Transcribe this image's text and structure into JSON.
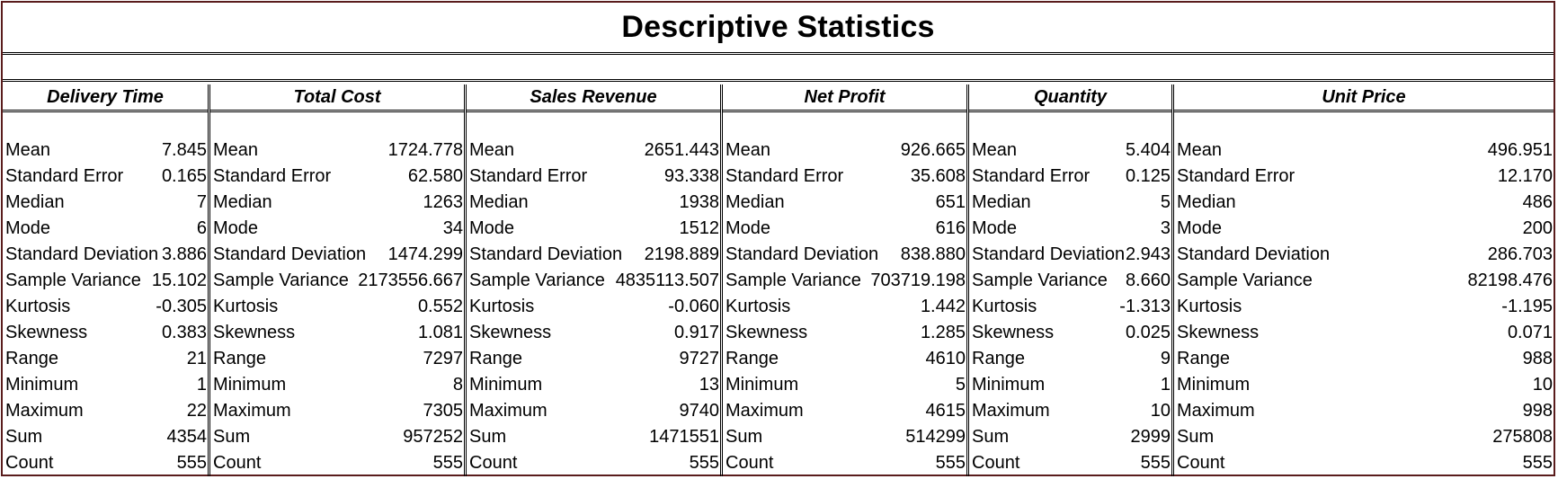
{
  "title": "Descriptive Statistics",
  "stat_labels": [
    "Mean",
    "Standard Error",
    "Median",
    "Mode",
    "Standard Deviation",
    "Sample Variance",
    "Kurtosis",
    "Skewness",
    "Range",
    "Minimum",
    "Maximum",
    "Sum",
    "Count"
  ],
  "columns": [
    {
      "header": "Delivery Time",
      "labels": [
        "Mean",
        "Standard Error",
        "Median",
        "Mode",
        "Standard Deviation",
        "Sample Variance",
        "Kurtosis",
        "Skewness",
        "Range",
        "Minimum",
        "Maximum",
        "Sum",
        "Count"
      ],
      "values": [
        "7.845",
        "0.165",
        "7",
        "6",
        "3.886",
        "15.102",
        "-0.305",
        "0.383",
        "21",
        "1",
        "22",
        "4354",
        "555"
      ]
    },
    {
      "header": "Total Cost",
      "labels": [
        "Mean",
        "Standard Error",
        "Median",
        "Mode",
        "Standard Deviation",
        "Sample Variance",
        "Kurtosis",
        "Skewness",
        "Range",
        "Minimum",
        "Maximum",
        "Sum",
        "Count"
      ],
      "values": [
        "1724.778",
        "62.580",
        "1263",
        "34",
        "1474.299",
        "2173556.667",
        "0.552",
        "1.081",
        "7297",
        "8",
        "7305",
        "957252",
        "555"
      ]
    },
    {
      "header": "Sales Revenue",
      "labels": [
        "Mean",
        "Standard Error",
        "Median",
        "Mode",
        "Standard Deviation",
        "Sample Variance",
        "Kurtosis",
        "Skewness",
        "Range",
        "Minimum",
        "Maximum",
        "Sum",
        "Count"
      ],
      "values": [
        "2651.443",
        "93.338",
        "1938",
        "1512",
        "2198.889",
        "4835113.507",
        "-0.060",
        "0.917",
        "9727",
        "13",
        "9740",
        "1471551",
        "555"
      ]
    },
    {
      "header": "Net Profit",
      "labels": [
        "Mean",
        "Standard Error",
        "Median",
        "Mode",
        "Standard Deviation",
        "Sample Variance",
        "Kurtosis",
        "Skewness",
        "Range",
        "Minimum",
        "Maximum",
        "Sum",
        "Count"
      ],
      "values": [
        "926.665",
        "35.608",
        "651",
        "616",
        "838.880",
        "703719.198",
        "1.442",
        "1.285",
        "4610",
        "5",
        "4615",
        "514299",
        "555"
      ]
    },
    {
      "header": "Quantity",
      "labels": [
        "Mean",
        "Standard Error",
        "Median",
        "Mode",
        "Standard Deviation",
        "Sample Variance",
        "Kurtosis",
        "Skewness",
        "Range",
        "Minimum",
        "Maximum",
        "Sum",
        "Count"
      ],
      "values": [
        "5.404",
        "0.125",
        "5",
        "3",
        "2.943",
        "8.660",
        "-1.313",
        "0.025",
        "9",
        "1",
        "10",
        "2999",
        "555"
      ]
    },
    {
      "header": "Unit Price",
      "labels": [
        "Mean",
        "Standard Error",
        "Median",
        "Mode",
        "Standard Deviation",
        "Sample Variance",
        "Kurtosis",
        "Skewness",
        "Range",
        "Minimum",
        "Maximum",
        "Sum",
        "Count"
      ],
      "values": [
        "496.951",
        "12.170",
        "486",
        "200",
        "286.703",
        "82198.476",
        "-1.195",
        "0.071",
        "988",
        "10",
        "998",
        "275808",
        "555"
      ]
    }
  ]
}
